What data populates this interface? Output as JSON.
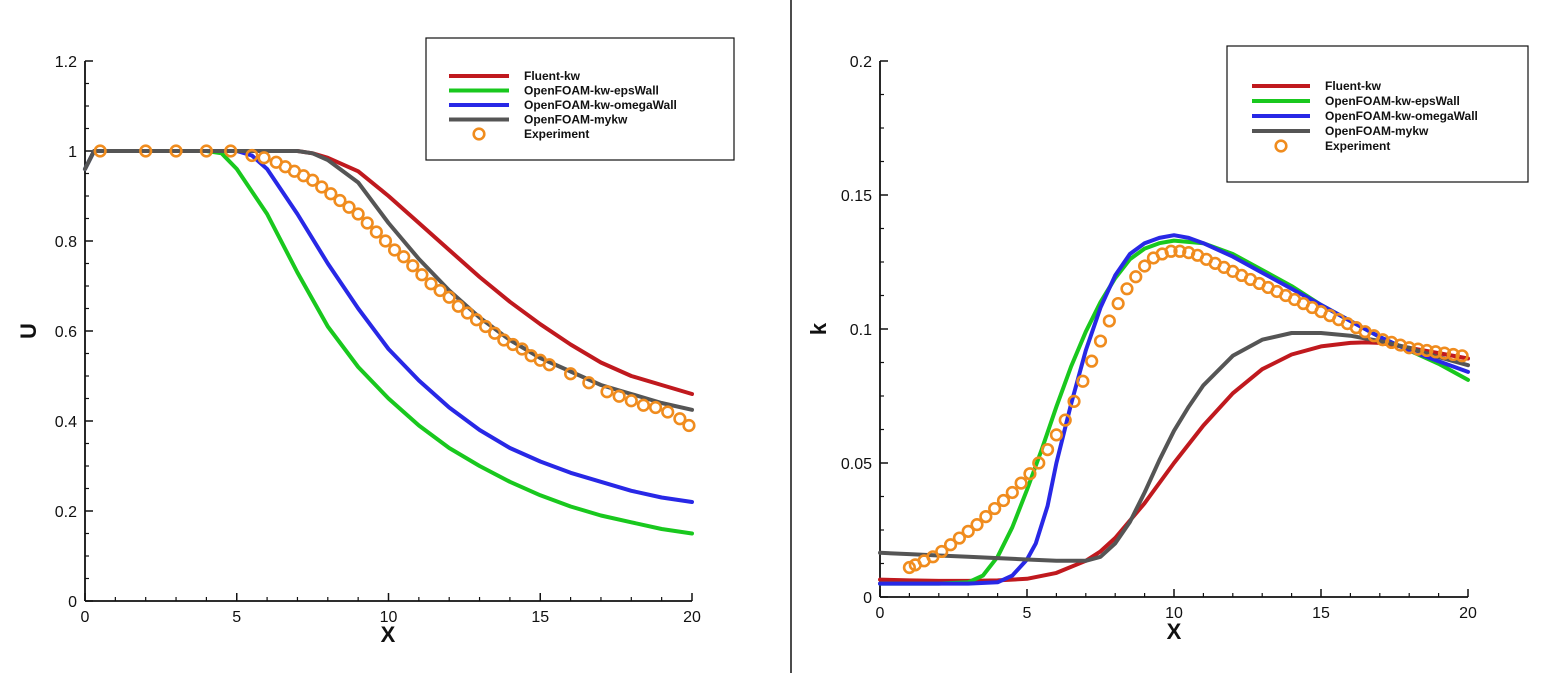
{
  "colors": {
    "fluent": "#c0191e",
    "eps": "#19c81e",
    "omega": "#2828e6",
    "mykw": "#555555",
    "experiment": "#f08c1e",
    "axis": "#111111"
  },
  "chart_data": [
    {
      "type": "line",
      "title": "",
      "xlabel": "X",
      "ylabel": "U",
      "xlim": [
        0,
        20
      ],
      "ylim": [
        0,
        1.2
      ],
      "grid": false,
      "legend_position": "top-right",
      "xticks": [
        "0",
        "5",
        "10",
        "15",
        "20"
      ],
      "yticks": [
        "0",
        "0.2",
        "0.4",
        "0.6",
        "0.8",
        "1",
        "1.2"
      ],
      "series": [
        {
          "name": "Fluent-kw",
          "color_key": "fluent",
          "x": [
            0,
            0.3,
            1,
            3,
            5,
            6,
            7,
            7.5,
            8,
            9,
            10,
            11,
            12,
            13,
            14,
            15,
            16,
            17,
            18,
            19,
            20
          ],
          "y": [
            0.96,
            1.0,
            1.0,
            1.0,
            1.0,
            1.0,
            1.0,
            0.995,
            0.985,
            0.955,
            0.9,
            0.84,
            0.78,
            0.72,
            0.665,
            0.615,
            0.57,
            0.53,
            0.5,
            0.48,
            0.46
          ]
        },
        {
          "name": "OpenFOAM-kw-epsWall",
          "color_key": "eps",
          "x": [
            0,
            0.3,
            1,
            3,
            4,
            4.5,
            5,
            6,
            7,
            8,
            9,
            10,
            11,
            12,
            13,
            14,
            15,
            16,
            17,
            18,
            19,
            20
          ],
          "y": [
            0.96,
            1.0,
            1.0,
            1.0,
            1.0,
            0.995,
            0.96,
            0.86,
            0.73,
            0.61,
            0.52,
            0.45,
            0.39,
            0.34,
            0.3,
            0.265,
            0.235,
            0.21,
            0.19,
            0.175,
            0.16,
            0.15
          ]
        },
        {
          "name": "OpenFOAM-kw-omegaWall",
          "color_key": "omega",
          "x": [
            0,
            0.3,
            1,
            3,
            4,
            5,
            5.5,
            6,
            7,
            8,
            9,
            10,
            11,
            12,
            13,
            14,
            15,
            16,
            17,
            18,
            19,
            20
          ],
          "y": [
            0.96,
            1.0,
            1.0,
            1.0,
            1.0,
            1.0,
            0.99,
            0.96,
            0.86,
            0.75,
            0.65,
            0.56,
            0.49,
            0.43,
            0.38,
            0.34,
            0.31,
            0.285,
            0.265,
            0.245,
            0.23,
            0.22
          ]
        },
        {
          "name": "OpenFOAM-mykw",
          "color_key": "mykw",
          "x": [
            0,
            0.3,
            1,
            3,
            5,
            7,
            7.5,
            8,
            9,
            10,
            11,
            12,
            13,
            14,
            15,
            16,
            17,
            18,
            19,
            20
          ],
          "y": [
            0.96,
            1.0,
            1.0,
            1.0,
            1.0,
            1.0,
            0.995,
            0.98,
            0.93,
            0.84,
            0.76,
            0.69,
            0.63,
            0.58,
            0.54,
            0.51,
            0.48,
            0.46,
            0.44,
            0.425
          ]
        },
        {
          "name": "Experiment",
          "color_key": "experiment",
          "marker": "circle",
          "x": [
            0.5,
            2,
            3,
            4,
            4.8,
            5.5,
            5.9,
            6.3,
            6.6,
            6.9,
            7.2,
            7.5,
            7.8,
            8.1,
            8.4,
            8.7,
            9.0,
            9.3,
            9.6,
            9.9,
            10.2,
            10.5,
            10.8,
            11.1,
            11.4,
            11.7,
            12.0,
            12.3,
            12.6,
            12.9,
            13.2,
            13.5,
            13.8,
            14.1,
            14.4,
            14.7,
            15.0,
            15.3,
            16.0,
            16.6,
            17.2,
            17.6,
            18.0,
            18.4,
            18.8,
            19.2,
            19.6,
            19.9
          ],
          "y": [
            1.0,
            1.0,
            1.0,
            1.0,
            1.0,
            0.99,
            0.985,
            0.975,
            0.965,
            0.955,
            0.945,
            0.935,
            0.92,
            0.905,
            0.89,
            0.875,
            0.86,
            0.84,
            0.82,
            0.8,
            0.78,
            0.765,
            0.745,
            0.725,
            0.705,
            0.69,
            0.675,
            0.655,
            0.64,
            0.625,
            0.61,
            0.595,
            0.58,
            0.57,
            0.56,
            0.545,
            0.535,
            0.525,
            0.505,
            0.485,
            0.465,
            0.455,
            0.445,
            0.435,
            0.43,
            0.42,
            0.405,
            0.39
          ]
        }
      ]
    },
    {
      "type": "line",
      "title": "",
      "xlabel": "X",
      "ylabel": "k",
      "xlim": [
        0,
        20
      ],
      "ylim": [
        0,
        0.2
      ],
      "grid": false,
      "legend_position": "top-right",
      "xticks": [
        "0",
        "5",
        "10",
        "15",
        "20"
      ],
      "yticks": [
        "0",
        "0.05",
        "0.1",
        "0.15",
        "0.2"
      ],
      "series": [
        {
          "name": "Fluent-kw",
          "color_key": "fluent",
          "x": [
            0,
            1,
            2,
            3,
            4,
            5,
            6,
            7,
            7.5,
            8,
            9,
            10,
            11,
            12,
            13,
            14,
            15,
            16,
            16.5,
            17,
            18,
            19,
            20
          ],
          "y": [
            0.0065,
            0.0062,
            0.006,
            0.006,
            0.0062,
            0.0068,
            0.009,
            0.0135,
            0.017,
            0.022,
            0.035,
            0.05,
            0.064,
            0.076,
            0.085,
            0.0905,
            0.0935,
            0.0948,
            0.095,
            0.0948,
            0.093,
            0.091,
            0.089
          ]
        },
        {
          "name": "OpenFOAM-kw-epsWall",
          "color_key": "eps",
          "x": [
            0,
            1,
            2,
            3,
            3.5,
            4,
            4.5,
            5,
            5.5,
            6,
            6.5,
            7,
            7.5,
            8,
            8.5,
            9,
            9.5,
            10,
            11,
            12,
            13,
            14,
            15,
            16,
            17,
            18,
            19,
            20
          ],
          "y": [
            0.005,
            0.005,
            0.005,
            0.0055,
            0.008,
            0.015,
            0.026,
            0.04,
            0.055,
            0.071,
            0.086,
            0.099,
            0.11,
            0.119,
            0.126,
            0.13,
            0.132,
            0.133,
            0.132,
            0.128,
            0.122,
            0.116,
            0.109,
            0.103,
            0.097,
            0.092,
            0.087,
            0.081
          ]
        },
        {
          "name": "OpenFOAM-kw-omegaWall",
          "color_key": "omega",
          "x": [
            0,
            1,
            2,
            3,
            4,
            4.5,
            5,
            5.3,
            5.7,
            6,
            6.5,
            7,
            7.5,
            8,
            8.5,
            9,
            9.5,
            10,
            10.5,
            11,
            12,
            13,
            14,
            15,
            16,
            17,
            18,
            19,
            20
          ],
          "y": [
            0.005,
            0.005,
            0.005,
            0.005,
            0.0055,
            0.008,
            0.014,
            0.02,
            0.034,
            0.05,
            0.072,
            0.092,
            0.108,
            0.12,
            0.128,
            0.132,
            0.134,
            0.135,
            0.134,
            0.132,
            0.127,
            0.121,
            0.115,
            0.109,
            0.103,
            0.097,
            0.092,
            0.088,
            0.084
          ]
        },
        {
          "name": "OpenFOAM-mykw",
          "color_key": "mykw",
          "x": [
            0,
            1,
            2,
            3,
            4,
            5,
            6,
            7,
            7.5,
            8,
            8.5,
            9,
            9.5,
            10,
            10.5,
            11,
            12,
            13,
            14,
            15,
            16,
            17,
            18,
            19,
            20
          ],
          "y": [
            0.0165,
            0.016,
            0.0155,
            0.015,
            0.0145,
            0.014,
            0.0135,
            0.0135,
            0.015,
            0.02,
            0.028,
            0.039,
            0.051,
            0.062,
            0.071,
            0.079,
            0.09,
            0.096,
            0.0985,
            0.0985,
            0.0975,
            0.0955,
            0.093,
            0.0895,
            0.0865
          ]
        },
        {
          "name": "Experiment",
          "color_key": "experiment",
          "marker": "circle",
          "x": [
            1.0,
            1.2,
            1.5,
            1.8,
            2.1,
            2.4,
            2.7,
            3.0,
            3.3,
            3.6,
            3.9,
            4.2,
            4.5,
            4.8,
            5.1,
            5.4,
            5.7,
            6.0,
            6.3,
            6.6,
            6.9,
            7.2,
            7.5,
            7.8,
            8.1,
            8.4,
            8.7,
            9.0,
            9.3,
            9.6,
            9.9,
            10.2,
            10.5,
            10.8,
            11.1,
            11.4,
            11.7,
            12.0,
            12.3,
            12.6,
            12.9,
            13.2,
            13.5,
            13.8,
            14.1,
            14.4,
            14.7,
            15.0,
            15.3,
            15.6,
            15.9,
            16.2,
            16.5,
            16.8,
            17.1,
            17.4,
            17.7,
            18.0,
            18.3,
            18.6,
            18.9,
            19.2,
            19.5,
            19.8
          ],
          "y": [
            0.011,
            0.012,
            0.0135,
            0.015,
            0.017,
            0.0195,
            0.022,
            0.0245,
            0.027,
            0.03,
            0.033,
            0.036,
            0.039,
            0.0425,
            0.046,
            0.05,
            0.055,
            0.0605,
            0.066,
            0.073,
            0.0805,
            0.088,
            0.0955,
            0.103,
            0.1095,
            0.115,
            0.1195,
            0.1235,
            0.1265,
            0.128,
            0.129,
            0.129,
            0.1285,
            0.1275,
            0.126,
            0.1245,
            0.123,
            0.1215,
            0.12,
            0.1185,
            0.117,
            0.1155,
            0.114,
            0.1125,
            0.111,
            0.1095,
            0.108,
            0.1065,
            0.105,
            0.1035,
            0.102,
            0.1005,
            0.099,
            0.0975,
            0.096,
            0.095,
            0.094,
            0.093,
            0.0925,
            0.092,
            0.0915,
            0.091,
            0.0905,
            0.09
          ]
        }
      ]
    }
  ]
}
